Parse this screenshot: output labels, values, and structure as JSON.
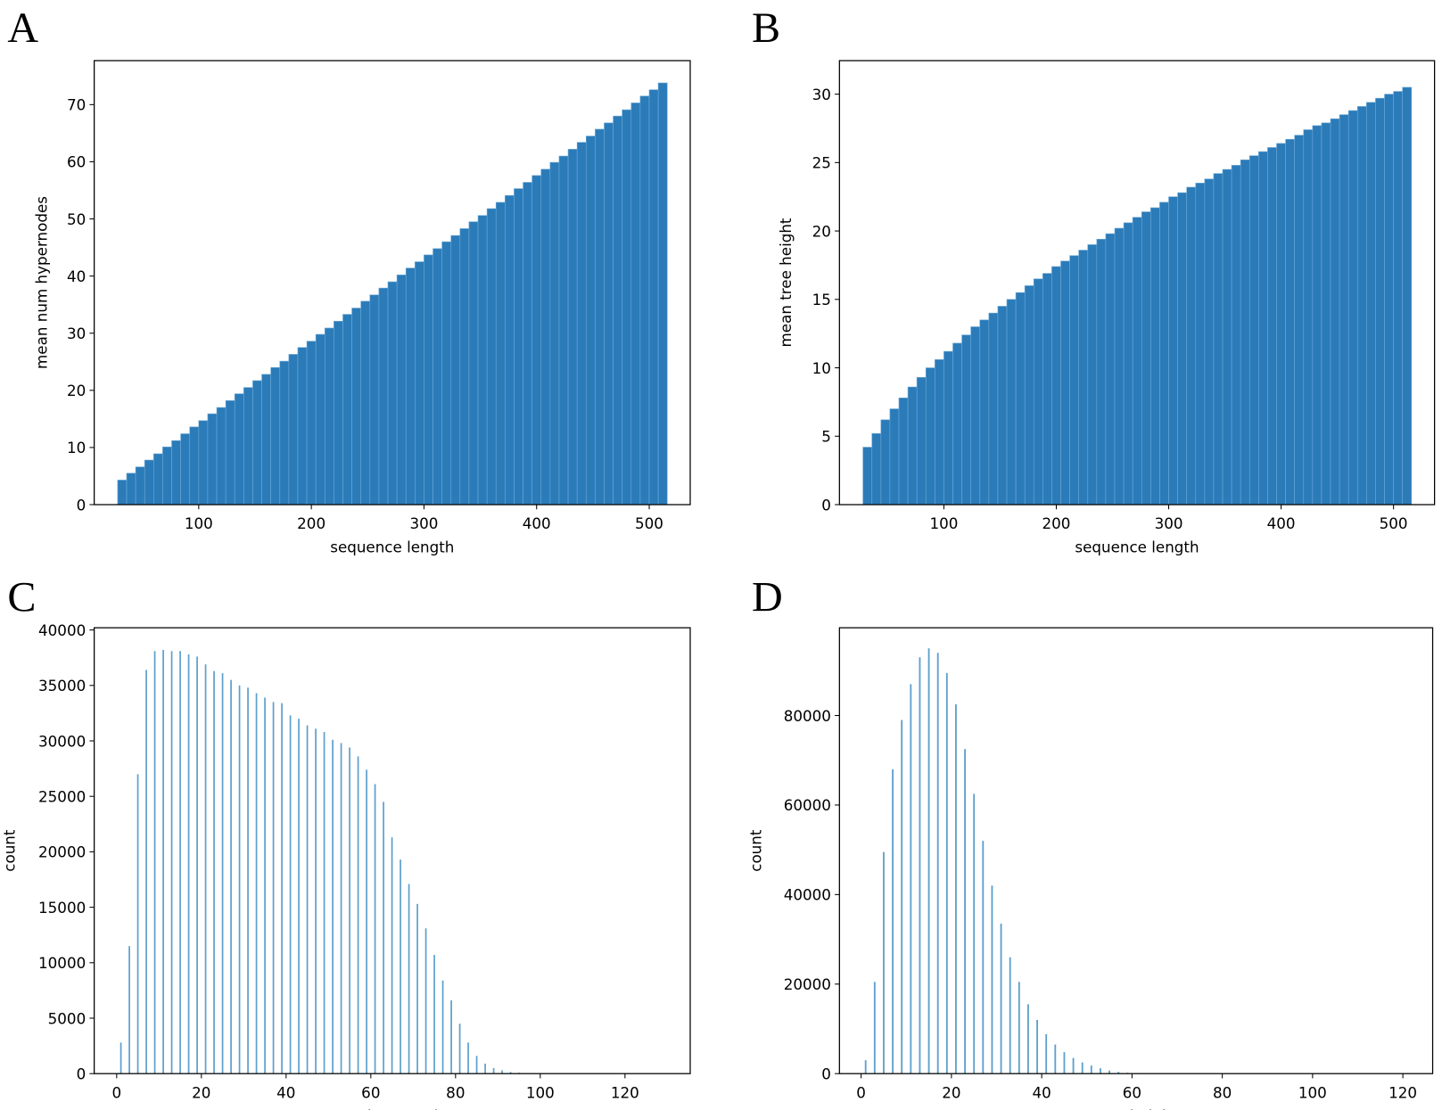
{
  "chart_data": [
    {
      "type": "bar",
      "label": "A",
      "xlabel": "sequence length",
      "ylabel": "mean num hypernodes",
      "color": "#2b7bb9",
      "x": [
        32,
        40,
        48,
        56,
        64,
        72,
        80,
        88,
        96,
        104,
        112,
        120,
        128,
        136,
        144,
        152,
        160,
        168,
        176,
        184,
        192,
        200,
        208,
        216,
        224,
        232,
        240,
        248,
        256,
        264,
        272,
        280,
        288,
        296,
        304,
        312,
        320,
        328,
        336,
        344,
        352,
        360,
        368,
        376,
        384,
        392,
        400,
        408,
        416,
        424,
        432,
        440,
        448,
        456,
        464,
        472,
        480,
        488,
        496,
        504,
        512
      ],
      "values": [
        4.3,
        5.5,
        6.6,
        7.8,
        8.9,
        10.1,
        11.2,
        12.4,
        13.6,
        14.7,
        15.9,
        17.0,
        18.2,
        19.4,
        20.5,
        21.7,
        22.8,
        24.0,
        25.1,
        26.3,
        27.5,
        28.6,
        29.8,
        30.9,
        32.1,
        33.3,
        34.4,
        35.6,
        36.7,
        37.9,
        39.0,
        40.2,
        41.4,
        42.5,
        43.7,
        44.8,
        46.0,
        47.1,
        48.3,
        49.5,
        50.6,
        51.8,
        52.9,
        54.1,
        55.3,
        56.4,
        57.6,
        58.7,
        59.9,
        61.0,
        62.2,
        63.4,
        64.5,
        65.7,
        66.8,
        68.0,
        69.1,
        70.3,
        71.5,
        72.6,
        73.8
      ],
      "xlim": [
        7.2,
        536.4
      ],
      "ylim": [
        0,
        77.7
      ],
      "xticks": [
        100,
        200,
        300,
        400,
        500
      ],
      "yticks": [
        0,
        10,
        20,
        30,
        40,
        50,
        60,
        70
      ]
    },
    {
      "type": "bar",
      "label": "B",
      "xlabel": "sequence length",
      "ylabel": "mean tree height",
      "color": "#2b7bb9",
      "x": [
        32,
        40,
        48,
        56,
        64,
        72,
        80,
        88,
        96,
        104,
        112,
        120,
        128,
        136,
        144,
        152,
        160,
        168,
        176,
        184,
        192,
        200,
        208,
        216,
        224,
        232,
        240,
        248,
        256,
        264,
        272,
        280,
        288,
        296,
        304,
        312,
        320,
        328,
        336,
        344,
        352,
        360,
        368,
        376,
        384,
        392,
        400,
        408,
        416,
        424,
        432,
        440,
        448,
        456,
        464,
        472,
        480,
        488,
        496,
        504,
        512
      ],
      "values": [
        4.2,
        5.2,
        6.2,
        7.0,
        7.8,
        8.6,
        9.3,
        10.0,
        10.6,
        11.2,
        11.8,
        12.4,
        13.0,
        13.5,
        14.0,
        14.5,
        15.0,
        15.5,
        16.0,
        16.5,
        16.9,
        17.4,
        17.8,
        18.2,
        18.6,
        19.0,
        19.4,
        19.8,
        20.2,
        20.6,
        21.0,
        21.4,
        21.7,
        22.1,
        22.5,
        22.8,
        23.2,
        23.5,
        23.8,
        24.2,
        24.5,
        24.8,
        25.2,
        25.5,
        25.8,
        26.1,
        26.4,
        26.7,
        27.0,
        27.4,
        27.7,
        27.9,
        28.2,
        28.5,
        28.8,
        29.1,
        29.4,
        29.7,
        30.0,
        30.2,
        30.5
      ],
      "xlim": [
        7.1,
        536.5
      ],
      "ylim": [
        0,
        32.45
      ],
      "xticks": [
        100,
        200,
        300,
        400,
        500
      ],
      "yticks": [
        0,
        5,
        10,
        15,
        20,
        25,
        30
      ]
    },
    {
      "type": "bar",
      "label": "C",
      "xlabel": "num hypernodes",
      "ylabel": "count",
      "color": "#5d9fcc",
      "x": [
        1,
        3,
        5,
        7,
        9,
        11,
        13,
        15,
        17,
        19,
        21,
        23,
        25,
        27,
        29,
        31,
        33,
        35,
        37,
        39,
        41,
        43,
        45,
        47,
        49,
        51,
        53,
        55,
        57,
        59,
        61,
        63,
        65,
        67,
        69,
        71,
        73,
        75,
        77,
        79,
        81,
        83,
        85,
        87,
        89,
        91,
        93,
        95,
        97
      ],
      "values": [
        2800,
        11500,
        27000,
        36400,
        38100,
        38200,
        38100,
        38100,
        37800,
        37600,
        36900,
        36300,
        36100,
        35500,
        35000,
        34800,
        34300,
        33900,
        33500,
        33400,
        32300,
        32000,
        31400,
        31100,
        30800,
        30100,
        29800,
        29400,
        28600,
        27400,
        26100,
        24500,
        21300,
        19300,
        17100,
        15300,
        13100,
        10700,
        8400,
        6600,
        4500,
        2800,
        1600,
        900,
        500,
        300,
        150,
        80,
        40
      ],
      "xlim": [
        -5.3,
        135.4
      ],
      "ylim": [
        0,
        40200
      ],
      "xticks": [
        0,
        20,
        40,
        60,
        80,
        100,
        120
      ],
      "yticks": [
        0,
        5000,
        10000,
        15000,
        20000,
        25000,
        30000,
        35000,
        40000
      ]
    },
    {
      "type": "bar",
      "label": "D",
      "xlabel": "tree height",
      "ylabel": "count",
      "color": "#5d9fcc",
      "x": [
        1,
        3,
        5,
        7,
        9,
        11,
        13,
        15,
        17,
        19,
        21,
        23,
        25,
        27,
        29,
        31,
        33,
        35,
        37,
        39,
        41,
        43,
        45,
        47,
        49,
        51,
        53,
        55,
        57,
        59,
        61
      ],
      "values": [
        3000,
        20500,
        49500,
        68000,
        79000,
        87000,
        93000,
        95000,
        94000,
        89500,
        82500,
        72500,
        62500,
        52000,
        42000,
        33500,
        26000,
        20500,
        15500,
        12000,
        8800,
        6500,
        4800,
        3500,
        2500,
        1800,
        1200,
        700,
        400,
        200,
        100
      ],
      "xlim": [
        -4.8,
        126.6
      ],
      "ylim": [
        0,
        99600
      ],
      "xticks": [
        0,
        20,
        40,
        60,
        80,
        100,
        120
      ],
      "yticks": [
        0,
        20000,
        40000,
        60000,
        80000
      ]
    }
  ]
}
